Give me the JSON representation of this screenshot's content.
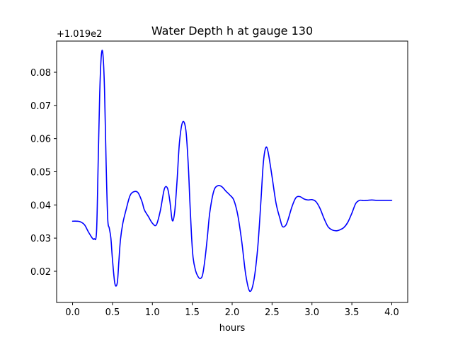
{
  "chart_data": {
    "type": "line",
    "title": "Water Depth h at gauge 130",
    "xlabel": "hours",
    "ylabel": "",
    "y_offset_label": "+1.019e2",
    "xlim": [
      -0.2,
      4.2
    ],
    "ylim": [
      0.0106,
      0.0894
    ],
    "x_ticks": [
      0.0,
      0.5,
      1.0,
      1.5,
      2.0,
      2.5,
      3.0,
      3.5,
      4.0
    ],
    "x_tick_labels": [
      "0.0",
      "0.5",
      "1.0",
      "1.5",
      "2.0",
      "2.5",
      "3.0",
      "3.5",
      "4.0"
    ],
    "y_ticks": [
      0.02,
      0.03,
      0.04,
      0.05,
      0.06,
      0.07,
      0.08
    ],
    "y_tick_labels": [
      "0.02",
      "0.03",
      "0.04",
      "0.05",
      "0.06",
      "0.07",
      "0.08"
    ],
    "grid": false,
    "series": [
      {
        "color": "#0000ff",
        "x": [
          0.0,
          0.05,
          0.1,
          0.15,
          0.2,
          0.25,
          0.27,
          0.3,
          0.32,
          0.34,
          0.36,
          0.38,
          0.4,
          0.42,
          0.44,
          0.46,
          0.48,
          0.5,
          0.53,
          0.56,
          0.58,
          0.6,
          0.63,
          0.67,
          0.72,
          0.77,
          0.82,
          0.87,
          0.9,
          0.95,
          1.0,
          1.05,
          1.1,
          1.15,
          1.19,
          1.22,
          1.25,
          1.28,
          1.31,
          1.34,
          1.38,
          1.42,
          1.45,
          1.47,
          1.49,
          1.51,
          1.54,
          1.57,
          1.6,
          1.63,
          1.66,
          1.69,
          1.72,
          1.77,
          1.82,
          1.87,
          1.92,
          1.97,
          2.02,
          2.07,
          2.12,
          2.17,
          2.22,
          2.27,
          2.32,
          2.36,
          2.39,
          2.42,
          2.45,
          2.5,
          2.55,
          2.6,
          2.63,
          2.67,
          2.7,
          2.75,
          2.8,
          2.85,
          2.9,
          2.95,
          3.0,
          3.05,
          3.1,
          3.15,
          3.2,
          3.25,
          3.3,
          3.35,
          3.4,
          3.45,
          3.5,
          3.55,
          3.6,
          3.65,
          3.7,
          3.75,
          3.8,
          3.85,
          3.9,
          3.95,
          4.0
        ],
        "y": [
          0.0351,
          0.0351,
          0.0349,
          0.034,
          0.0318,
          0.0299,
          0.0298,
          0.0318,
          0.052,
          0.0735,
          0.085,
          0.0855,
          0.075,
          0.053,
          0.036,
          0.033,
          0.03,
          0.0235,
          0.0163,
          0.0165,
          0.023,
          0.0295,
          0.0345,
          0.0385,
          0.0428,
          0.044,
          0.0437,
          0.041,
          0.0385,
          0.0365,
          0.0345,
          0.034,
          0.0383,
          0.0448,
          0.045,
          0.041,
          0.0353,
          0.038,
          0.0475,
          0.059,
          0.065,
          0.0625,
          0.052,
          0.041,
          0.031,
          0.0242,
          0.0203,
          0.0185,
          0.0178,
          0.019,
          0.0238,
          0.0305,
          0.0378,
          0.0442,
          0.0458,
          0.0455,
          0.0442,
          0.043,
          0.0415,
          0.037,
          0.029,
          0.019,
          0.014,
          0.017,
          0.027,
          0.041,
          0.0525,
          0.0572,
          0.056,
          0.0485,
          0.0405,
          0.0358,
          0.0335,
          0.0338,
          0.0355,
          0.0395,
          0.0422,
          0.0425,
          0.0418,
          0.0415,
          0.0416,
          0.041,
          0.039,
          0.036,
          0.0335,
          0.0325,
          0.0322,
          0.0325,
          0.0332,
          0.0348,
          0.0375,
          0.0405,
          0.0414,
          0.0413,
          0.0414,
          0.0415,
          0.0414,
          0.0414,
          0.0414,
          0.0414,
          0.0414
        ]
      }
    ]
  }
}
